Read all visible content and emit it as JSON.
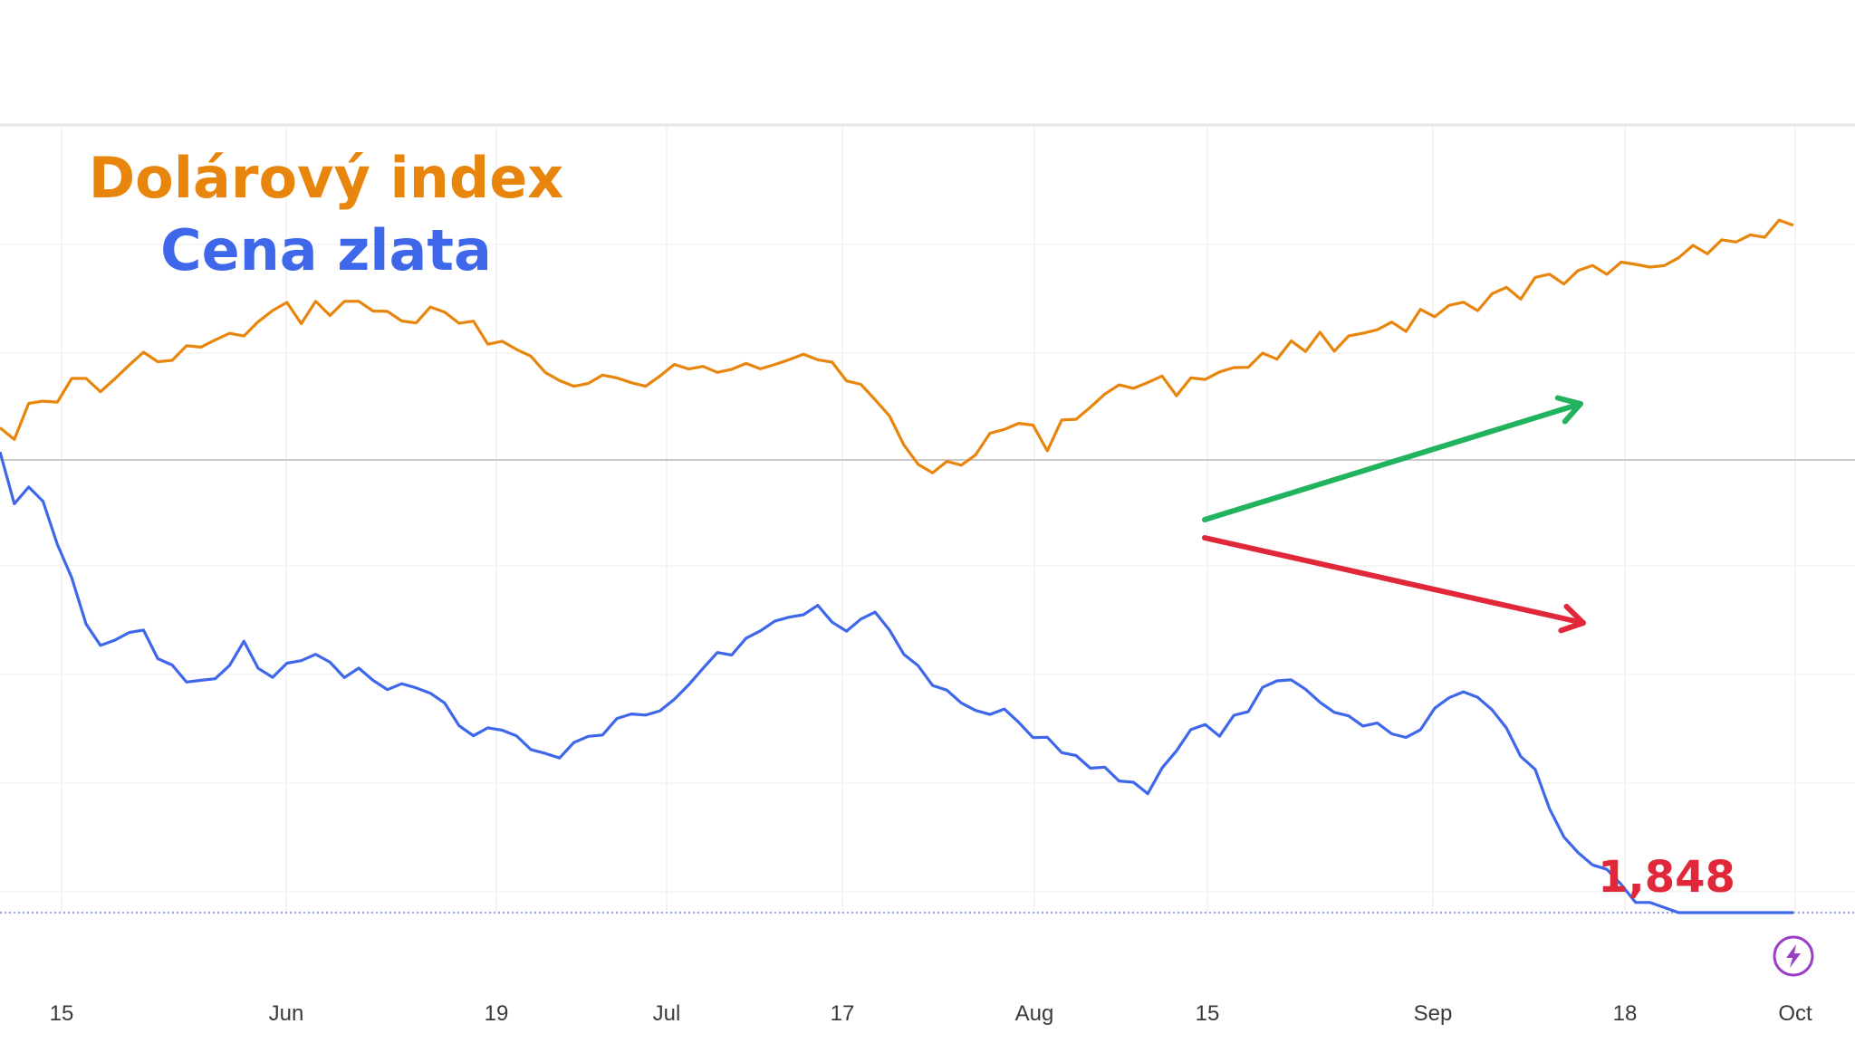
{
  "chart_data": {
    "type": "line",
    "title": "",
    "xlabel": "",
    "ylabel": "",
    "x_ticks": [
      "15",
      "Jun",
      "19",
      "Jul",
      "17",
      "Aug",
      "15",
      "Sep",
      "18",
      "Oct"
    ],
    "legend": [
      {
        "label": "Dolárový index",
        "color": "#e8850c"
      },
      {
        "label": "Cena zlata",
        "color": "#3f67ea"
      }
    ],
    "series": [
      {
        "name": "Dolárový index",
        "color": "#e8850c",
        "values": [
          0.45,
          0.42,
          0.48,
          0.5,
          0.52,
          0.55,
          0.56,
          0.53,
          0.57,
          0.59,
          0.62,
          0.63,
          0.61,
          0.64,
          0.65,
          0.66,
          0.67,
          0.69,
          0.71,
          0.74,
          0.75,
          0.73,
          0.76,
          0.75,
          0.77,
          0.76,
          0.75,
          0.74,
          0.73,
          0.72,
          0.74,
          0.73,
          0.71,
          0.7,
          0.68,
          0.66,
          0.65,
          0.63,
          0.6,
          0.55,
          0.54,
          0.55,
          0.57,
          0.58,
          0.55,
          0.54,
          0.56,
          0.59,
          0.6,
          0.58,
          0.57,
          0.6,
          0.62,
          0.61,
          0.62,
          0.63,
          0.64,
          0.62,
          0.61,
          0.58,
          0.54,
          0.5,
          0.45,
          0.38,
          0.34,
          0.32,
          0.33,
          0.35,
          0.38,
          0.41,
          0.43,
          0.44,
          0.42,
          0.39,
          0.45,
          0.47,
          0.49,
          0.52,
          0.53,
          0.55,
          0.57,
          0.56,
          0.54,
          0.55,
          0.57,
          0.59,
          0.6,
          0.61,
          0.62,
          0.63,
          0.65,
          0.66,
          0.67,
          0.66,
          0.68,
          0.7,
          0.71,
          0.7,
          0.69,
          0.73,
          0.72,
          0.76,
          0.75,
          0.74,
          0.78,
          0.8,
          0.79,
          0.82,
          0.83,
          0.84,
          0.86,
          0.85,
          0.84,
          0.86,
          0.87,
          0.86,
          0.89,
          0.9,
          0.92,
          0.91,
          0.93,
          0.95,
          0.96,
          0.95,
          0.98,
          0.97
        ]
      },
      {
        "name": "Cena zlata",
        "color": "#3f67ea",
        "values": [
          0.9,
          0.82,
          0.85,
          0.8,
          0.72,
          0.65,
          0.58,
          0.52,
          0.54,
          0.56,
          0.55,
          0.5,
          0.48,
          0.46,
          0.45,
          0.47,
          0.5,
          0.53,
          0.49,
          0.46,
          0.48,
          0.5,
          0.51,
          0.48,
          0.47,
          0.49,
          0.46,
          0.44,
          0.45,
          0.46,
          0.43,
          0.4,
          0.38,
          0.36,
          0.35,
          0.36,
          0.34,
          0.33,
          0.31,
          0.32,
          0.34,
          0.36,
          0.35,
          0.37,
          0.39,
          0.38,
          0.4,
          0.42,
          0.45,
          0.48,
          0.51,
          0.52,
          0.53,
          0.56,
          0.58,
          0.57,
          0.59,
          0.6,
          0.58,
          0.56,
          0.57,
          0.59,
          0.55,
          0.52,
          0.49,
          0.46,
          0.44,
          0.42,
          0.41,
          0.4,
          0.39,
          0.38,
          0.36,
          0.34,
          0.32,
          0.31,
          0.29,
          0.28,
          0.27,
          0.26,
          0.25,
          0.28,
          0.32,
          0.35,
          0.37,
          0.36,
          0.38,
          0.4,
          0.43,
          0.46,
          0.45,
          0.44,
          0.42,
          0.4,
          0.39,
          0.38,
          0.37,
          0.36,
          0.35,
          0.37,
          0.4,
          0.42,
          0.43,
          0.44,
          0.4,
          0.36,
          0.32,
          0.28,
          0.2,
          0.15,
          0.12,
          0.1,
          0.08,
          0.05,
          0.03,
          0.02,
          0.01,
          0.0,
          0.0,
          0.0,
          0.0,
          0.0,
          0.0,
          0.0,
          0.0,
          0.0
        ]
      }
    ],
    "annotations": {
      "last_value_label": "1,848",
      "up_arrow_color": "#22b35e",
      "down_arrow_color": "#e0283a"
    },
    "grid": true
  }
}
